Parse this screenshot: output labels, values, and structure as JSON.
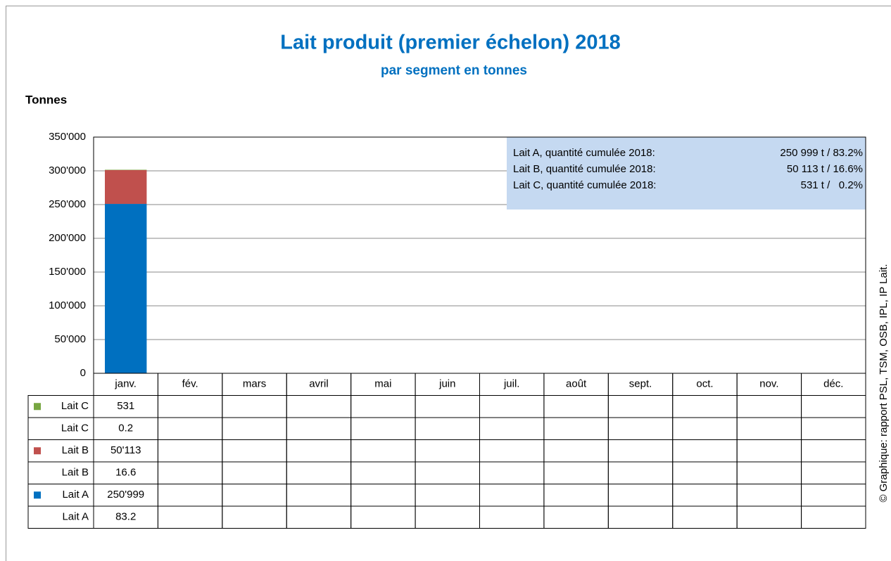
{
  "chart_data": {
    "type": "bar",
    "stacked": true,
    "title": "Lait produit (premier échelon) 2018",
    "subtitle": "par segment en tonnes",
    "y_label": "Tonnes",
    "categories": [
      "janv.",
      "fév.",
      "mars",
      "avril",
      "mai",
      "juin",
      "juil.",
      "août",
      "sept.",
      "oct.",
      "nov.",
      "déc."
    ],
    "series": [
      {
        "name": "Lait A",
        "color": "#0070c0",
        "values": [
          250999,
          null,
          null,
          null,
          null,
          null,
          null,
          null,
          null,
          null,
          null,
          null
        ],
        "value_labels": [
          "250'999",
          null,
          null,
          null,
          null,
          null,
          null,
          null,
          null,
          null,
          null,
          null
        ]
      },
      {
        "name": "Lait B",
        "color": "#c0504d",
        "values": [
          50113,
          null,
          null,
          null,
          null,
          null,
          null,
          null,
          null,
          null,
          null,
          null
        ],
        "value_labels": [
          "50'113",
          null,
          null,
          null,
          null,
          null,
          null,
          null,
          null,
          null,
          null,
          null
        ]
      },
      {
        "name": "Lait C",
        "color": "#77a641",
        "values": [
          531,
          null,
          null,
          null,
          null,
          null,
          null,
          null,
          null,
          null,
          null,
          null
        ]
      }
    ],
    "share_rows": [
      {
        "name": "Lait A",
        "values": [
          83.2,
          null,
          null,
          null,
          null,
          null,
          null,
          null,
          null,
          null,
          null,
          null
        ]
      },
      {
        "name": "Lait B",
        "values": [
          16.6,
          null,
          null,
          null,
          null,
          null,
          null,
          null,
          null,
          null,
          null,
          null
        ]
      },
      {
        "name": "Lait C",
        "values": [
          0.2,
          null,
          null,
          null,
          null,
          null,
          null,
          null,
          null,
          null,
          null,
          null
        ]
      }
    ],
    "ylim": [
      0,
      350000
    ],
    "yticks": [
      0,
      {
        "value": 50000,
        "label": "50'000"
      },
      {
        "value": 100000,
        "label": "100'000"
      },
      {
        "value": 150000,
        "label": "150'000"
      },
      {
        "value": 200000,
        "label": "200'000"
      },
      {
        "value": 250000,
        "label": "250'000"
      },
      {
        "value": 300000,
        "label": "300'000"
      },
      {
        "value": 350000,
        "label": "350'000"
      }
    ],
    "grid": true,
    "annotation": [
      [
        "Lait A, quantité cumulée 2018:",
        "250 999 t / 83.2%"
      ],
      [
        "Lait B, quantité cumulée 2018:",
        "50 113 t / 16.6%"
      ],
      [
        "Lait C, quantité cumulée 2018:",
        "531 t /   0.2%"
      ]
    ],
    "source": "© Graphique: rapport PSL, TSM, OSB, IPL, IP Lait."
  }
}
